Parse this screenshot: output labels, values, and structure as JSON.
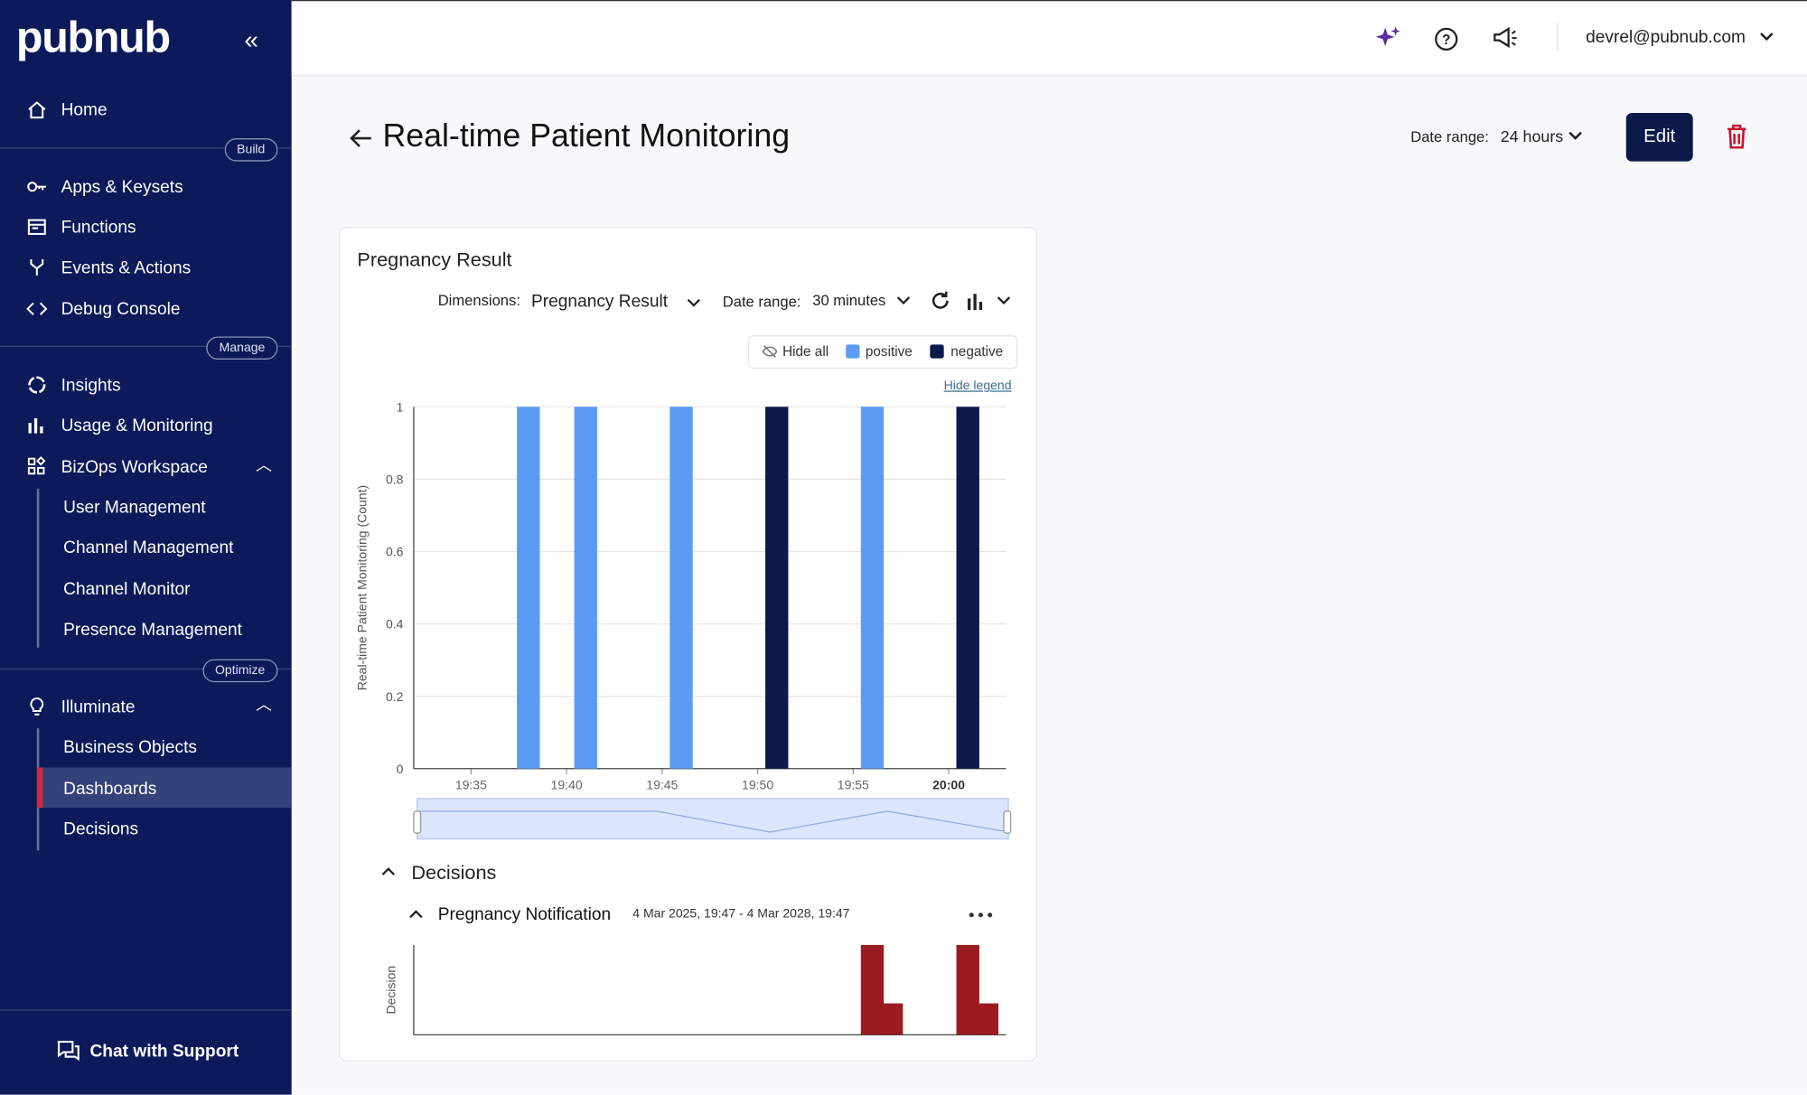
{
  "sidebar": {
    "logo": "pubnub",
    "home": "Home",
    "build": "Build",
    "build_items": [
      "Apps & Keysets",
      "Functions",
      "Events & Actions",
      "Debug Console"
    ],
    "manage": "Manage",
    "manage_items": [
      "Insights",
      "Usage & Monitoring",
      "BizOps Workspace"
    ],
    "bizops_items": [
      "User Management",
      "Channel Management",
      "Channel Monitor",
      "Presence Management"
    ],
    "optimize": "Optimize",
    "illuminate": "Illuminate",
    "illuminate_items": [
      "Business Objects",
      "Dashboards",
      "Decisions"
    ],
    "support": "Chat with Support"
  },
  "header": {
    "user": "devrel@pubnub.com"
  },
  "page": {
    "title": "Real-time Patient Monitoring",
    "date_range_label": "Date range:",
    "date_range": "24 hours",
    "edit": "Edit"
  },
  "widget": {
    "title": "Pregnancy Result",
    "dimensions_label": "Dimensions:",
    "dimensions": "Pregnancy Result",
    "date_range_label": "Date range:",
    "date_range": "30 minutes",
    "hide_all": "Hide all",
    "hide_legend": "Hide legend",
    "decisions": "Decisions",
    "decision_name": "Pregnancy Notification",
    "decision_period": "4 Mar 2025, 19:47 - 4 Mar 2028, 19:47"
  },
  "chart_data": [
    {
      "type": "bar",
      "y_label": "Real-time Patient Monitoring (Count)",
      "series": [
        {
          "name": "positive",
          "color": "#5b9cf2",
          "x": [
            "19:38",
            "19:41",
            "19:46",
            "19:56"
          ],
          "values": [
            1,
            1,
            1,
            1
          ]
        },
        {
          "name": "negative",
          "color": "#0b1a4a",
          "x": [
            "19:51",
            "20:01"
          ],
          "values": [
            1,
            1
          ]
        }
      ],
      "xlim": [
        "19:32",
        "20:03"
      ],
      "xticks": [
        "19:35",
        "19:40",
        "19:45",
        "19:50",
        "19:55",
        "20:00"
      ],
      "ylim": [
        0,
        1
      ],
      "yticks": [
        0,
        0.2,
        0.4,
        0.6,
        0.8,
        1
      ],
      "grid": true,
      "legend": "top-right"
    },
    {
      "type": "bar",
      "y_label": "Decision",
      "series": [
        {
          "color": "#9b1b22",
          "x": [
            "19:56",
            "19:57",
            "20:01",
            "20:02"
          ],
          "values": [
            1,
            0.35,
            1,
            0.35
          ]
        }
      ],
      "xlim": [
        "19:32",
        "20:03"
      ],
      "ylim": [
        0,
        1
      ]
    }
  ]
}
